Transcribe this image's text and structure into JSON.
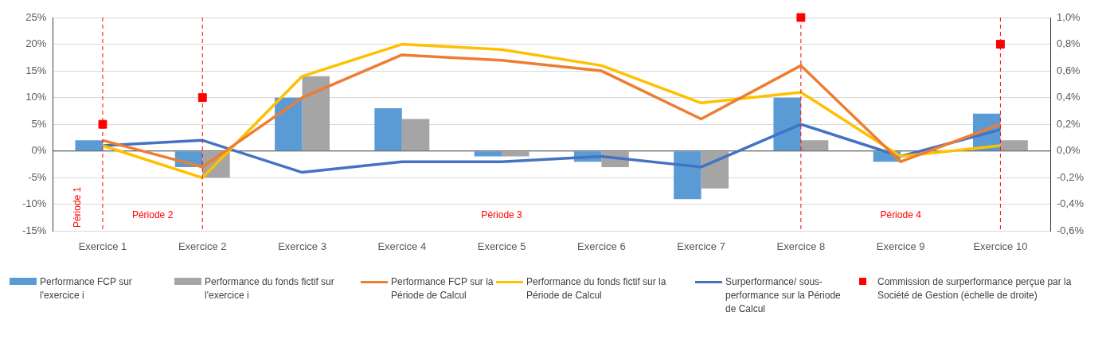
{
  "chart_data": {
    "type": "bar",
    "categories": [
      "Exercice 1",
      "Exercice 2",
      "Exercice 3",
      "Exercice 4",
      "Exercice 5",
      "Exercice 6",
      "Exercice 7",
      "Exercice 8",
      "Exercice 9",
      "Exercice 10"
    ],
    "series": [
      {
        "name": "Performance FCP sur l'exercice i",
        "color": "#5b9bd5",
        "values": [
          2,
          -3,
          10,
          8,
          -1,
          -2,
          -9,
          10,
          -2,
          7
        ]
      },
      {
        "name": "Performance du fonds fictif sur l'exercice i",
        "color": "#a5a5a5",
        "values": [
          0,
          -5,
          14,
          6,
          -1,
          -3,
          -7,
          2,
          null,
          2
        ]
      },
      {
        "name": "Performance FCP sur la Période de Calcul",
        "type": "line",
        "color": "#ed7d31",
        "marker": "none",
        "values": [
          2,
          -3,
          10,
          18,
          17,
          15,
          6,
          16,
          -2,
          5
        ]
      },
      {
        "name": "Performance du fonds fictif sur la Période de Calcul",
        "type": "line",
        "color": "#ffc000",
        "marker": "none",
        "values": [
          1,
          -5,
          14,
          20,
          19,
          16,
          9,
          11,
          -1,
          1
        ]
      },
      {
        "name": "Surperformance/ sous-performance sur la Période de Calcul",
        "type": "line",
        "color": "#4472c4",
        "marker": "none",
        "values": [
          1,
          2,
          -4,
          -2,
          -2,
          -1,
          -3,
          5,
          -1,
          4
        ]
      },
      {
        "name": "Commission de surperformance perçue par la Société de Gestion (échelle de droite)",
        "type": "scatter",
        "axis": "y2",
        "color": "#ff0000",
        "marker": "square",
        "values": [
          0.2,
          0.4,
          null,
          null,
          null,
          null,
          null,
          1.0,
          null,
          0.8
        ]
      }
    ],
    "ylim": [
      -15,
      25
    ],
    "yticks": [
      {
        "value": -15,
        "label": "-15%"
      },
      {
        "value": -10,
        "label": "-10%"
      },
      {
        "value": -5,
        "label": "-5%"
      },
      {
        "value": 0,
        "label": "0%"
      },
      {
        "value": 5,
        "label": "5%"
      },
      {
        "value": 10,
        "label": "10%"
      },
      {
        "value": 15,
        "label": "15%"
      },
      {
        "value": 20,
        "label": "20%"
      },
      {
        "value": 25,
        "label": "25%"
      }
    ],
    "y2lim": [
      -0.6,
      1.0
    ],
    "y2ticks": [
      {
        "value": -0.6,
        "label": "-0,6%"
      },
      {
        "value": -0.4,
        "label": "-0,4%"
      },
      {
        "value": -0.2,
        "label": "-0,2%"
      },
      {
        "value": 0,
        "label": "0,0%"
      },
      {
        "value": 0.2,
        "label": "0,2%"
      },
      {
        "value": 0.4,
        "label": "0,4%"
      },
      {
        "value": 0.6,
        "label": "0,6%"
      },
      {
        "value": 0.8,
        "label": "0,8%"
      },
      {
        "value": 1.0,
        "label": "1,0%"
      }
    ],
    "ref_lines": [
      {
        "axis": "x",
        "value": "Exercice 1",
        "label": "Période 1",
        "color": "#ff0000",
        "line_style": "dashed"
      },
      {
        "axis": "x",
        "value": "Exercice 2",
        "label": "Période 2",
        "color": "#ff0000",
        "line_style": "dashed"
      },
      {
        "axis": "x",
        "value": "Exercice 8",
        "label": "Période 3",
        "color": "#ff0000",
        "line_style": "dashed"
      },
      {
        "axis": "x",
        "value": "Exercice 10",
        "label": "Période 4",
        "color": "#ff0000",
        "line_style": "dashed"
      }
    ],
    "grid": "y",
    "legend": "bottom"
  }
}
